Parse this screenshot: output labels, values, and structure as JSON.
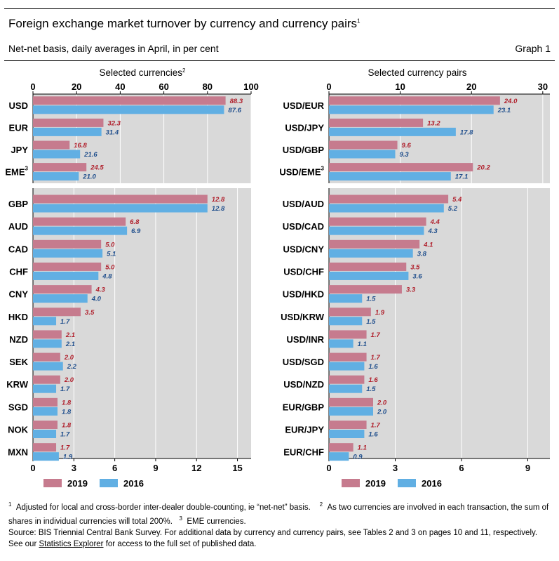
{
  "header": {
    "title": "Foreign exchange market turnover by currency and currency pairs",
    "title_sup": "1",
    "subtitle": "Net-net basis, daily averages in April, in per cent",
    "graph_label": "Graph 1"
  },
  "colors": {
    "y2019": "#c67b8e",
    "y2016": "#61afe3",
    "plot_bg": "#d9d9d9",
    "label_2019": "#b0202c",
    "label_2016": "#1f4e8c"
  },
  "chart_data": [
    {
      "type": "bar",
      "orientation": "horizontal",
      "title": "Selected currencies",
      "title_sup": "2",
      "legend": [
        "2019",
        "2016"
      ],
      "panels": [
        {
          "axis": "top",
          "xlim": [
            0,
            100
          ],
          "ticks": [
            0,
            20,
            40,
            60,
            80,
            100
          ],
          "categories": [
            "USD",
            "EUR",
            "JPY",
            "EME"
          ],
          "category_sups": [
            "",
            "",
            "",
            "3"
          ],
          "series": [
            {
              "name": "2019",
              "values": [
                88.3,
                32.3,
                16.8,
                24.5
              ]
            },
            {
              "name": "2016",
              "values": [
                87.6,
                31.4,
                21.6,
                21.0
              ]
            }
          ]
        },
        {
          "axis": "bottom",
          "xlim": [
            0,
            16
          ],
          "ticks": [
            0,
            3,
            6,
            9,
            12,
            15
          ],
          "categories": [
            "GBP",
            "AUD",
            "CAD",
            "CHF",
            "CNY",
            "HKD",
            "NZD",
            "SEK",
            "KRW",
            "SGD",
            "NOK",
            "MXN"
          ],
          "category_sups": [
            "",
            "",
            "",
            "",
            "",
            "",
            "",
            "",
            "",
            "",
            "",
            ""
          ],
          "series": [
            {
              "name": "2019",
              "values": [
                12.8,
                6.8,
                5.0,
                5.0,
                4.3,
                3.5,
                2.1,
                2.0,
                2.0,
                1.8,
                1.8,
                1.7
              ]
            },
            {
              "name": "2016",
              "values": [
                12.8,
                6.9,
                5.1,
                4.8,
                4.0,
                1.7,
                2.1,
                2.2,
                1.7,
                1.8,
                1.7,
                1.9
              ]
            }
          ]
        }
      ]
    },
    {
      "type": "bar",
      "orientation": "horizontal",
      "title": "Selected currency pairs",
      "title_sup": "",
      "legend": [
        "2019",
        "2016"
      ],
      "panels": [
        {
          "axis": "top",
          "xlim": [
            0,
            31
          ],
          "ticks": [
            0,
            10,
            20,
            30
          ],
          "categories": [
            "USD/EUR",
            "USD/JPY",
            "USD/GBP",
            "USD/EME"
          ],
          "category_sups": [
            "",
            "",
            "",
            "3"
          ],
          "series": [
            {
              "name": "2019",
              "values": [
                24.0,
                13.2,
                9.6,
                20.2
              ]
            },
            {
              "name": "2016",
              "values": [
                23.1,
                17.8,
                9.3,
                17.1
              ]
            }
          ]
        },
        {
          "axis": "bottom",
          "xlim": [
            0,
            10
          ],
          "ticks": [
            0,
            3,
            6,
            9
          ],
          "categories": [
            "USD/AUD",
            "USD/CAD",
            "USD/CNY",
            "USD/CHF",
            "USD/HKD",
            "USD/KRW",
            "USD/INR",
            "USD/SGD",
            "USD/NZD",
            "EUR/GBP",
            "EUR/JPY",
            "EUR/CHF"
          ],
          "category_sups": [
            "",
            "",
            "",
            "",
            "",
            "",
            "",
            "",
            "",
            "",
            "",
            ""
          ],
          "series": [
            {
              "name": "2019",
              "values": [
                5.4,
                4.4,
                4.1,
                3.5,
                3.3,
                1.9,
                1.7,
                1.7,
                1.6,
                2.0,
                1.7,
                1.1
              ]
            },
            {
              "name": "2016",
              "values": [
                5.2,
                4.3,
                3.8,
                3.6,
                1.5,
                1.5,
                1.1,
                1.6,
                1.5,
                2.0,
                1.6,
                0.9
              ]
            }
          ]
        }
      ]
    }
  ],
  "footnotes": {
    "n1_mark": "1",
    "n1_text": "Adjusted for local and cross-border inter-dealer double-counting, ie “net-net” basis.",
    "n2_mark": "2",
    "n2_text": "As two currencies are involved in each transaction, the sum of shares in individual currencies will total 200%.",
    "n3_mark": "3",
    "n3_text": "EME currencies."
  },
  "source": {
    "text_before": "Source: BIS Triennial Central Bank Survey. For additional data by currency and currency pairs, see Tables 2 and 3 on pages 10 and 11, respectively. See our ",
    "link": "Statistics Explorer",
    "text_after": " for access to the full set of published data."
  }
}
